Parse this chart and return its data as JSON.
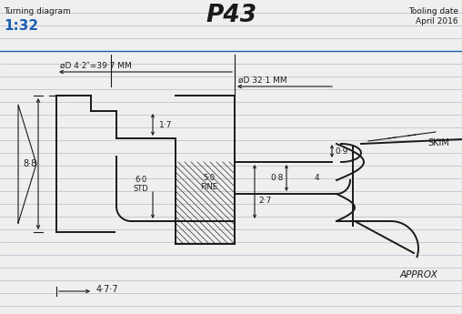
{
  "title": "P43",
  "subtitle_left": "Turning diagram",
  "scale": "1:32",
  "tooling_date_line1": "Tooling date",
  "tooling_date_line2": "April 2016",
  "dim1": "øD 4·2″=39·7 MM",
  "dim2": "øD 32·1 MM",
  "dim3": "0·9",
  "dim4": "0·8",
  "dim5": "4",
  "dim6": "1·7",
  "dim7": "8·8",
  "dim8": "5·0\nFINE",
  "dim9": "6·0\nSTD",
  "dim10": "2·7",
  "dim11": "4·7·7",
  "label_skim": "SKIM",
  "label_approx": "APPROX",
  "bg_color": "#f0eff0",
  "line_color": "#1a1a1a",
  "blue_color": "#1a5fb4",
  "ruled_line_color": "#b8b8cc"
}
